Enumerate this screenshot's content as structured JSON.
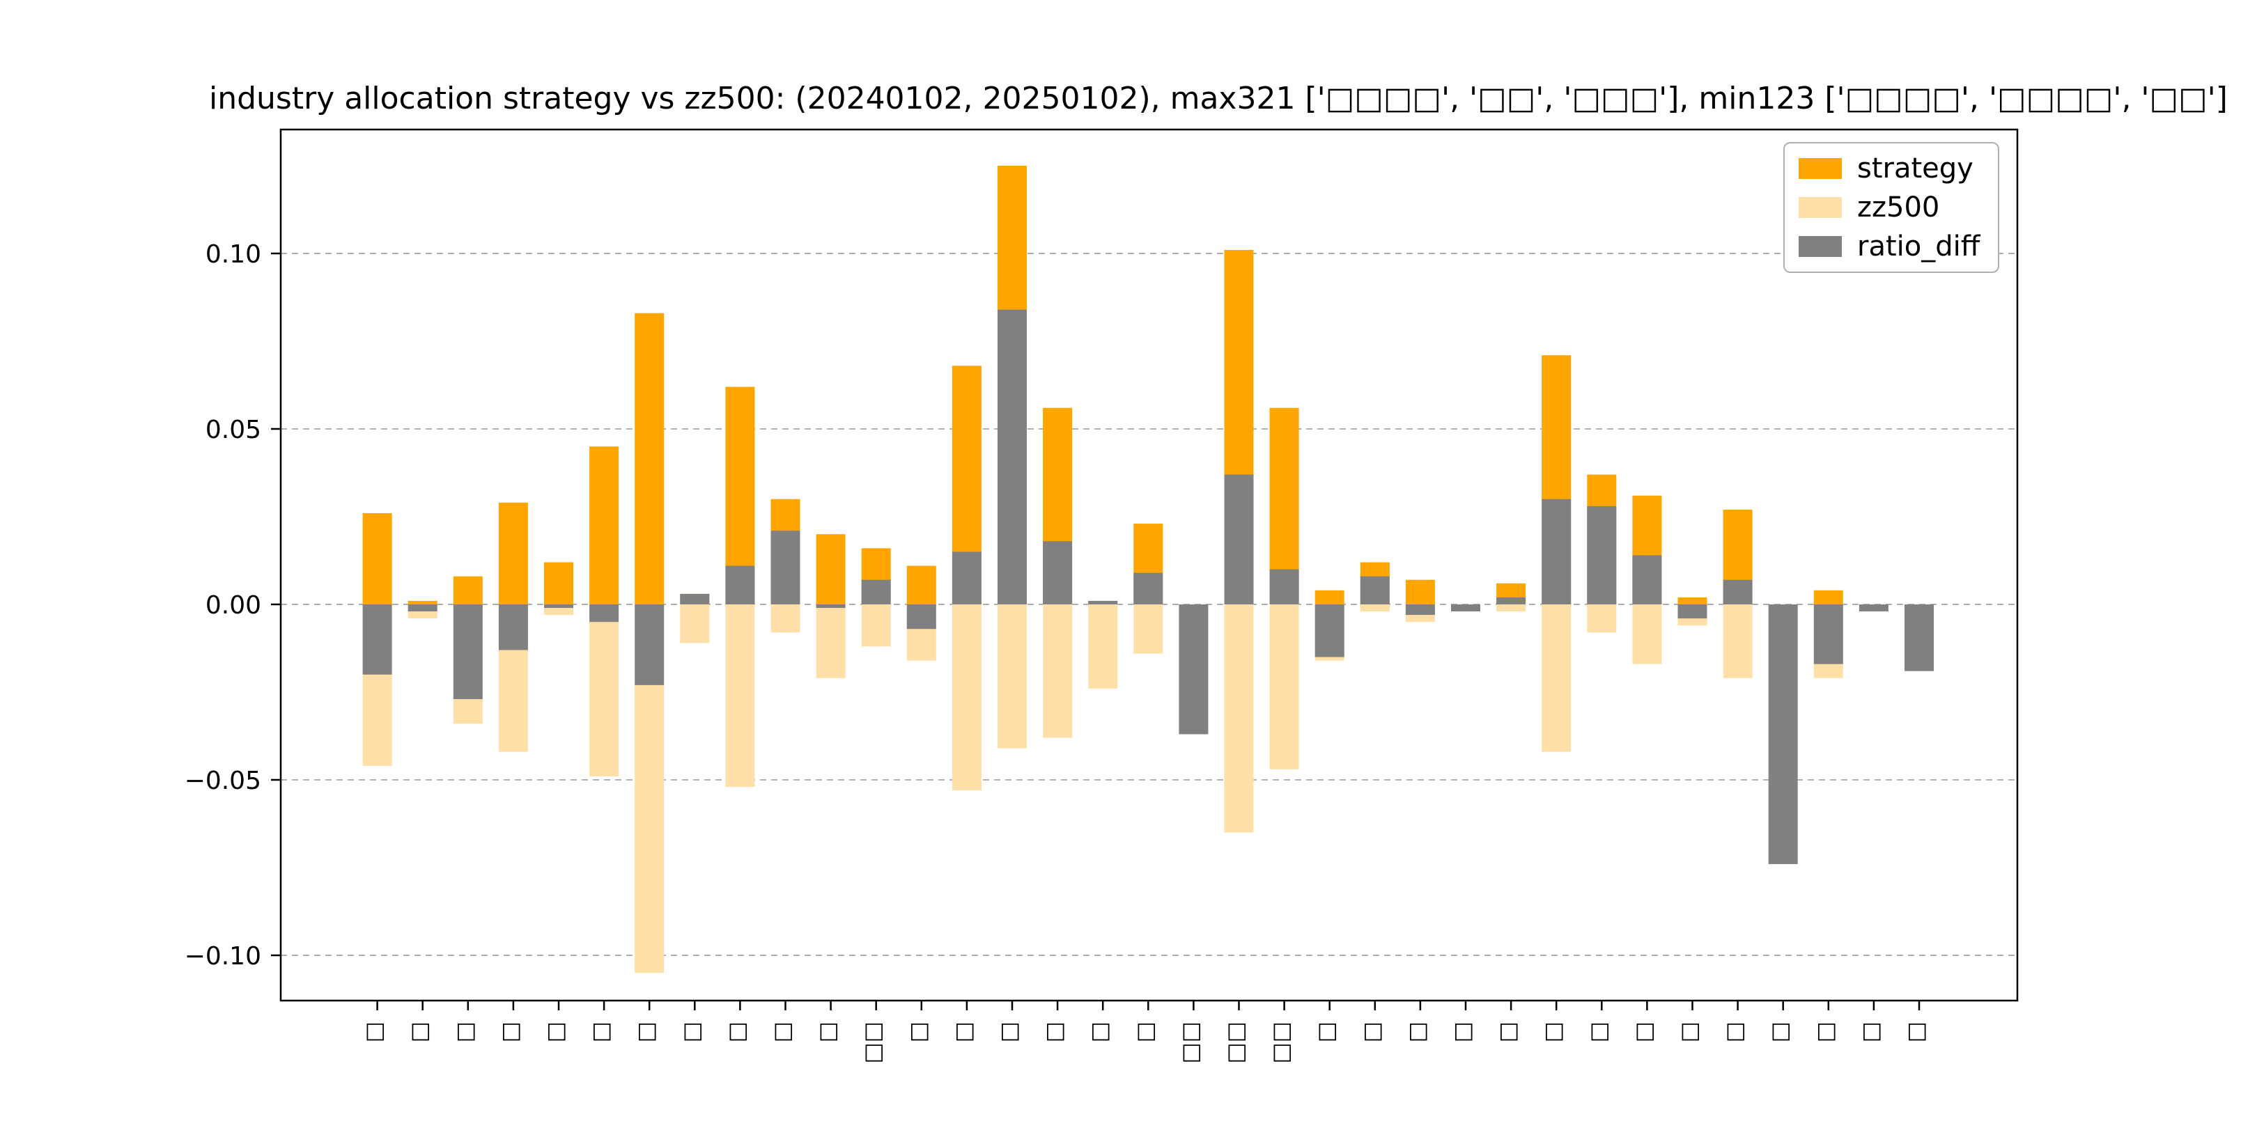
{
  "chart_data": {
    "type": "bar",
    "title": "industry allocation strategy vs zz500: (20240102, 20250102), max321 ['□□□□', '□□', '□□□'], min123 ['□□□□', '□□□□', '□□']",
    "categories": [
      "□",
      "□",
      "□",
      "□",
      "□",
      "□",
      "□",
      "□",
      "□",
      "□",
      "□",
      "□□",
      "□",
      "□",
      "□",
      "□",
      "□",
      "□",
      "□□",
      "□□",
      "□□",
      "□",
      "□",
      "□",
      "□",
      "□",
      "□",
      "□",
      "□",
      "□",
      "□",
      "□",
      "□",
      "□",
      "□"
    ],
    "series": [
      {
        "name": "strategy",
        "color": "#FFA500",
        "values": [
          0.026,
          0.001,
          0.008,
          0.029,
          0.012,
          0.045,
          0.083,
          0.003,
          0.062,
          0.03,
          0.02,
          0.016,
          0.011,
          0.068,
          0.125,
          0.056,
          0.001,
          0.023,
          0,
          0.101,
          0.056,
          0.004,
          0.012,
          0.007,
          0,
          0.006,
          0.071,
          0.037,
          0.031,
          0.002,
          0.027,
          0,
          0.004,
          0,
          0
        ]
      },
      {
        "name": "zz500",
        "color": "#FFDFA8",
        "values": [
          -0.046,
          -0.004,
          -0.034,
          -0.042,
          -0.003,
          -0.049,
          -0.105,
          -0.011,
          -0.052,
          -0.008,
          -0.021,
          -0.012,
          -0.016,
          -0.053,
          -0.041,
          -0.038,
          -0.024,
          -0.014,
          0,
          -0.065,
          -0.047,
          -0.016,
          -0.002,
          -0.005,
          0,
          -0.002,
          -0.042,
          -0.008,
          -0.017,
          -0.006,
          -0.021,
          0,
          -0.021,
          0,
          0
        ]
      },
      {
        "name": "ratio_diff",
        "color": "#808080",
        "values": [
          -0.02,
          -0.002,
          -0.027,
          -0.013,
          -0.001,
          -0.005,
          -0.023,
          0.003,
          0.011,
          0.021,
          -0.001,
          0.007,
          -0.007,
          0.015,
          0.084,
          0.018,
          0.001,
          0.009,
          -0.037,
          0.037,
          0.01,
          -0.015,
          0.008,
          -0.003,
          -0.002,
          0.002,
          0.03,
          0.028,
          0.014,
          -0.004,
          0.007,
          -0.074,
          -0.017,
          -0.002,
          -0.019
        ]
      }
    ],
    "yticks": [
      0.1,
      0.05,
      0.0,
      -0.05,
      -0.1
    ],
    "ylim": [
      -0.113,
      0.135
    ],
    "grid": "dashed horizontal",
    "legend_position": "upper right",
    "bar_mode": "overlaid"
  }
}
